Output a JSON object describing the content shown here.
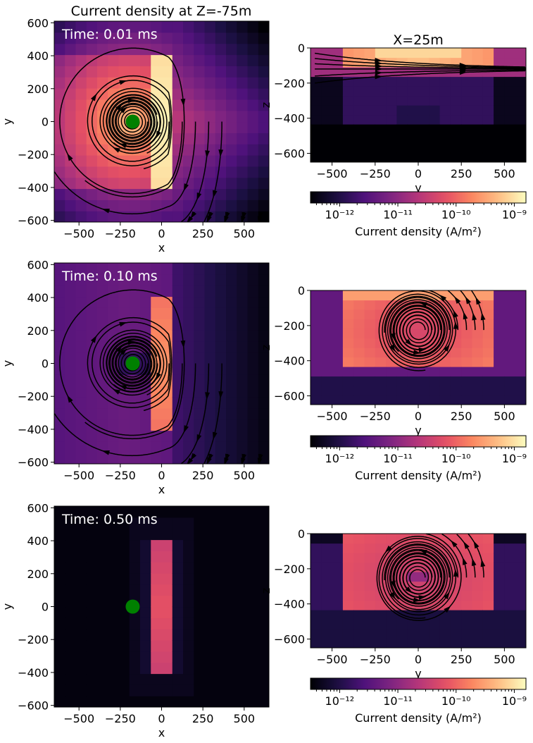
{
  "figure": {
    "title_left": "Current density at Z=-75m",
    "title_right": "X=25m"
  },
  "chart_data": [
    {
      "type": "heatmap",
      "panel": "xy-t1",
      "annotation": "Time: 0.01 ms",
      "xlabel": "x",
      "ylabel": "y",
      "xlim": [
        -650,
        650
      ],
      "ylim": [
        -610,
        610
      ],
      "xticks": [
        -500,
        -250,
        0,
        250,
        500
      ],
      "yticks": [
        -600,
        -400,
        -200,
        0,
        200,
        400,
        600
      ],
      "source_marker": {
        "x": -175,
        "y": 0,
        "color": "#008000"
      },
      "max_density_location": {
        "x": -25,
        "y": 0
      },
      "vortex_center": {
        "x": -175,
        "y": 0
      }
    },
    {
      "type": "heatmap",
      "panel": "yz-t1",
      "xlabel": "y",
      "ylabel": "z",
      "xlim": [
        -625,
        625
      ],
      "ylim": [
        -650,
        0
      ],
      "xticks": [
        -500,
        -250,
        0,
        250,
        500
      ],
      "yticks": [
        -600,
        -400,
        -200,
        0
      ],
      "high_density_layer_depth": [
        -50,
        -150
      ]
    },
    {
      "type": "heatmap",
      "panel": "xy-t2",
      "annotation": "Time: 0.10 ms",
      "xlabel": "x",
      "ylabel": "y",
      "xlim": [
        -650,
        650
      ],
      "ylim": [
        -610,
        610
      ],
      "xticks": [
        -500,
        -250,
        0,
        250,
        500
      ],
      "yticks": [
        -600,
        -400,
        -200,
        0,
        200,
        400,
        600
      ],
      "source_marker": {
        "x": -175,
        "y": 0,
        "color": "#008000"
      },
      "vortex_center": {
        "x": -175,
        "y": 0
      }
    },
    {
      "type": "heatmap",
      "panel": "yz-t2",
      "xlabel": "y",
      "ylabel": "z",
      "xlim": [
        -625,
        625
      ],
      "ylim": [
        -650,
        0
      ],
      "xticks": [
        -500,
        -250,
        0,
        250,
        500
      ],
      "yticks": [
        -600,
        -400,
        -200,
        0
      ],
      "vortex_center": {
        "y": 0,
        "z": -225
      }
    },
    {
      "type": "heatmap",
      "panel": "xy-t3",
      "annotation": "Time: 0.50 ms",
      "xlabel": "x",
      "ylabel": "y",
      "xlim": [
        -650,
        650
      ],
      "ylim": [
        -610,
        610
      ],
      "xticks": [
        -500,
        -250,
        0,
        250,
        500
      ],
      "yticks": [
        -600,
        -400,
        -200,
        0,
        200,
        400,
        600
      ],
      "source_marker": {
        "x": -175,
        "y": 0,
        "color": "#008000"
      }
    },
    {
      "type": "heatmap",
      "panel": "yz-t3",
      "xlabel": "y",
      "ylabel": "z",
      "xlim": [
        -625,
        625
      ],
      "ylim": [
        -650,
        0
      ],
      "xticks": [
        -500,
        -250,
        0,
        250,
        500
      ],
      "yticks": [
        -600,
        -400,
        -200,
        0
      ],
      "vortex_center": {
        "y": 0,
        "z": -250
      }
    }
  ],
  "colorbar": {
    "label": "Current density (A/m²)",
    "scale": "log",
    "colormap": "magma",
    "tick_labels": [
      "10⁻¹²",
      "10⁻¹¹",
      "10⁻¹⁰",
      "10⁻⁹"
    ],
    "range_exponent": [
      -12.5,
      -8.8
    ]
  },
  "colors": {
    "marker": "#008000",
    "streamline": "#000000",
    "annotation_text": "#ffffff"
  }
}
